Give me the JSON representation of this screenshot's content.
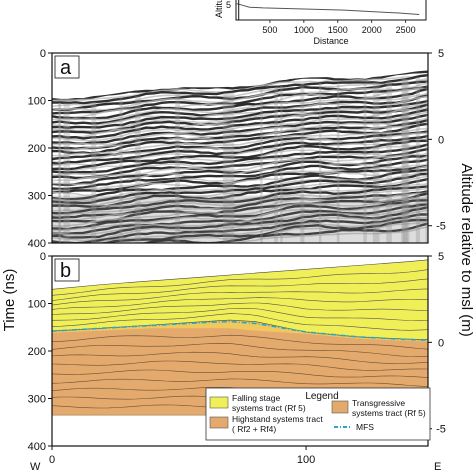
{
  "chart_data": [
    {
      "type": "line",
      "panel": "inset",
      "xlabel": "Distance",
      "ylabel": "Altitu",
      "xticks": [
        "500",
        "1000",
        "1500",
        "2000",
        "2500"
      ],
      "xlim": [
        0,
        2800
      ],
      "yticks": [
        "5"
      ],
      "series": [
        {
          "values": [
            [
              0,
              9
            ],
            [
              100,
              8
            ],
            [
              200,
              7
            ],
            [
              400,
              6.6
            ],
            [
              800,
              6.2
            ],
            [
              1200,
              5.8
            ],
            [
              1600,
              5.4
            ],
            [
              2000,
              4.6
            ],
            [
              2400,
              3.8
            ],
            [
              2700,
              3.0
            ]
          ]
        }
      ]
    },
    {
      "type": "heatmap",
      "panel": "a",
      "label": "a",
      "xlim": [
        0,
        148
      ],
      "ylim": [
        400,
        0
      ],
      "ylim_right": [
        -6,
        5
      ],
      "yticks_left": [
        "0",
        "100",
        "200",
        "300",
        "400"
      ],
      "yticks_right": [
        "5",
        "0",
        "-5"
      ]
    },
    {
      "type": "area",
      "panel": "b",
      "label": "b",
      "xlim": [
        0,
        148
      ],
      "ylim": [
        400,
        0
      ],
      "ylim_right": [
        -6,
        5
      ],
      "yticks_left": [
        "0",
        "100",
        "200",
        "300",
        "400"
      ],
      "yticks_right": [
        "5",
        "0",
        "-5"
      ],
      "xticks": [
        "0",
        "100"
      ],
      "xlabel_left": "W",
      "xlabel_right": "E",
      "ylabel_left": "Time (ns)",
      "ylabel_right": "Altitude relative  to msl (m)",
      "series": [
        {
          "name": "Falling stage systems tract (Rf 5)",
          "color": "#f1ef57",
          "top_ns": [
            [
              0,
              70
            ],
            [
              20,
              60
            ],
            [
              40,
              52
            ],
            [
              60,
              44
            ],
            [
              80,
              36
            ],
            [
              100,
              28
            ],
            [
              120,
              20
            ],
            [
              140,
              12
            ],
            [
              148,
              8
            ]
          ]
        },
        {
          "name": "Transgressive systems tract (Rf 5)",
          "color": "#f0c85e",
          "top_ns": [
            [
              0,
              158
            ],
            [
              20,
              152
            ],
            [
              40,
              145
            ],
            [
              60,
              138
            ],
            [
              70,
              135
            ],
            [
              80,
              138
            ],
            [
              100,
              160
            ],
            [
              120,
              170
            ],
            [
              140,
              175
            ],
            [
              148,
              176
            ]
          ]
        },
        {
          "name": "Highstand systems tract ( Rf2 + Rf4)",
          "color": "#e4a96c",
          "top_ns": [
            [
              0,
              160
            ],
            [
              20,
              155
            ],
            [
              40,
              150
            ],
            [
              60,
              150
            ],
            [
              70,
              150
            ],
            [
              80,
              155
            ],
            [
              100,
              162
            ],
            [
              120,
              172
            ],
            [
              140,
              177
            ],
            [
              148,
              178
            ]
          ],
          "bottom_ns": [
            [
              0,
              335
            ],
            [
              148,
              335
            ]
          ]
        },
        {
          "name": "MFS",
          "color": "#28a8c8",
          "values_ns": [
            [
              0,
              158
            ],
            [
              20,
              152
            ],
            [
              40,
              146
            ],
            [
              60,
              140
            ],
            [
              70,
              138
            ],
            [
              80,
              142
            ],
            [
              100,
              160
            ],
            [
              120,
              170
            ],
            [
              140,
              176
            ],
            [
              148,
              177
            ]
          ]
        }
      ]
    }
  ],
  "legend": {
    "title": "Legend",
    "falling_line1": "Falling stage",
    "falling_line2": "systems tract (Rf 5)",
    "highstand_line1": "Highstand systems tract",
    "highstand_line2": "( Rf2 + Rf4)",
    "transgressive_line1": "Transgressive",
    "transgressive_line2": "systems tract (Rf 5)",
    "mfs": "MFS"
  }
}
